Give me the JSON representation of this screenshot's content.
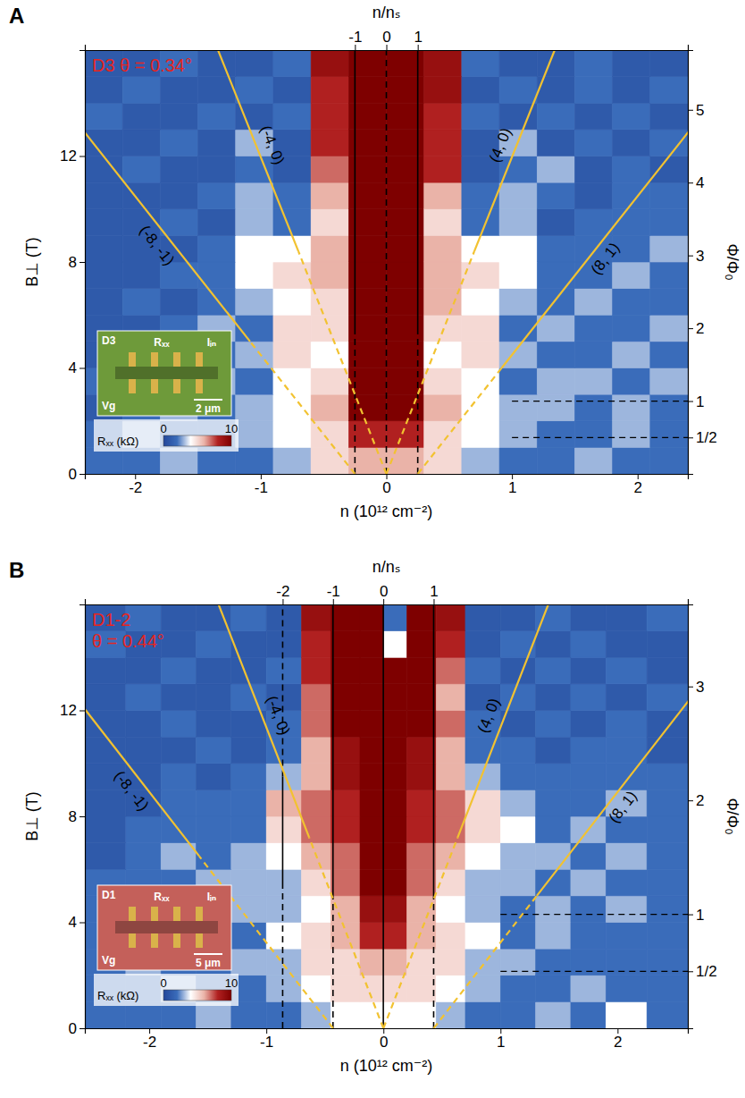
{
  "chart_data": [
    {
      "type": "heatmap",
      "panel": "A",
      "annotation": [
        "D3 θ = 0.34°"
      ],
      "x_label": "n (10¹² cm⁻²)",
      "y_label": "B⊥ (T)",
      "x2_label": "n/nₛ",
      "y2_label": "Φ/Φ₀",
      "xlim": [
        -2.4,
        2.4
      ],
      "xticks": [
        -2,
        -1,
        0,
        1,
        2
      ],
      "ylim": [
        0,
        16
      ],
      "yticks": [
        0,
        4,
        8,
        12
      ],
      "x2lim": [
        -9.6,
        9.6
      ],
      "x2ticks": [
        -1,
        0,
        1
      ],
      "y2lim": [
        0,
        5.82
      ],
      "y2ticks": [
        {
          "value": 0.5,
          "label": "1/2"
        },
        1,
        2,
        3,
        4,
        5
      ],
      "x_edges": [
        -2.4,
        -2.1,
        -1.8,
        -1.5,
        -1.2,
        -0.9,
        -0.6,
        -0.3,
        0,
        0.3,
        0.6,
        0.9,
        1.2,
        1.5,
        1.8,
        2.1,
        2.4
      ],
      "y_edges": [
        0,
        1,
        2,
        3,
        4,
        5,
        6,
        7,
        8,
        9,
        10,
        11,
        12,
        13,
        14,
        15,
        16
      ],
      "z": [
        [
          2,
          2,
          3,
          2,
          2,
          3,
          5,
          6,
          6,
          5,
          3,
          2,
          2,
          3,
          2,
          2
        ],
        [
          2,
          3,
          2,
          2,
          3,
          4,
          5,
          8,
          8,
          5,
          4,
          3,
          2,
          2,
          3,
          2
        ],
        [
          1,
          2,
          3,
          2,
          3,
          4,
          6,
          10,
          10,
          6,
          4,
          3,
          3,
          2,
          3,
          2
        ],
        [
          2,
          1,
          2,
          3,
          2,
          4,
          5,
          10,
          10,
          5,
          4,
          2,
          3,
          3,
          2,
          3
        ],
        [
          1,
          2,
          2,
          2,
          3,
          5,
          4,
          10,
          10,
          4,
          5,
          3,
          2,
          2,
          3,
          2
        ],
        [
          1,
          1,
          2,
          3,
          2,
          5,
          5,
          10,
          10,
          5,
          5,
          2,
          3,
          2,
          2,
          3
        ],
        [
          1,
          2,
          1,
          2,
          3,
          4,
          5,
          10,
          10,
          6,
          4,
          3,
          2,
          3,
          2,
          2
        ],
        [
          1,
          1,
          2,
          2,
          4,
          5,
          6,
          10,
          10,
          6,
          5,
          4,
          2,
          2,
          3,
          2
        ],
        [
          1,
          1,
          1,
          2,
          4,
          4,
          6,
          10,
          10,
          6,
          4,
          4,
          2,
          2,
          2,
          3
        ],
        [
          1,
          1,
          2,
          1,
          3,
          2,
          5,
          10,
          10,
          5,
          2,
          3,
          1,
          2,
          2,
          2
        ],
        [
          1,
          1,
          1,
          2,
          3,
          2,
          6,
          10,
          10,
          6,
          2,
          3,
          2,
          1,
          2,
          2
        ],
        [
          1,
          2,
          1,
          1,
          2,
          1,
          7,
          10,
          10,
          8,
          1,
          2,
          3,
          1,
          2,
          1
        ],
        [
          1,
          1,
          2,
          1,
          3,
          1,
          8,
          10,
          10,
          8,
          1,
          3,
          1,
          2,
          1,
          2
        ],
        [
          2,
          1,
          1,
          2,
          1,
          2,
          8,
          10,
          10,
          8,
          2,
          1,
          2,
          1,
          2,
          1
        ],
        [
          1,
          2,
          1,
          1,
          2,
          1,
          8,
          10,
          10,
          9,
          1,
          2,
          1,
          2,
          1,
          2
        ],
        [
          1,
          1,
          2,
          1,
          1,
          2,
          9,
          10,
          10,
          9,
          2,
          1,
          1,
          2,
          1,
          1
        ]
      ],
      "colorbar": {
        "label": "Rₓₓ (kΩ)",
        "range": [
          0,
          10
        ],
        "ticks": [
          0,
          10
        ],
        "colors": [
          "#24479a",
          "#3a6cba",
          "#ffffff",
          "#eab3a8",
          "#b02020",
          "#7e0000"
        ]
      },
      "vlines": [
        {
          "x2": -1,
          "color": "#000000",
          "segments": [
            {
              "y": [
                0,
                5.5
              ],
              "line_style": "dashed"
            },
            {
              "y": [
                5.5,
                16
              ],
              "line_style": "solid"
            }
          ]
        },
        {
          "x2": 0,
          "color": "#000000",
          "segments": [
            {
              "y": [
                0,
                16
              ],
              "line_style": "dashed"
            }
          ]
        },
        {
          "x2": 1,
          "color": "#000000",
          "segments": [
            {
              "y": [
                0,
                5.5
              ],
              "line_style": "dashed"
            },
            {
              "y": [
                5.5,
                16
              ],
              "line_style": "solid"
            }
          ]
        }
      ],
      "hlines": [
        {
          "y2": 1,
          "x_from": 1,
          "color": "#000000",
          "line_style": "dashed"
        },
        {
          "y2": 0.5,
          "x_from": 1,
          "color": "#000000",
          "line_style": "dashed"
        }
      ],
      "fan_lines": [
        {
          "label": "(-8, -1)",
          "color": "#f2c230",
          "segments": [
            {
              "x": [
                -0.25,
                -1.085
              ],
              "y": [
                0,
                5
              ],
              "line_style": "dashed"
            },
            {
              "x": [
                -1.085,
                -2.92
              ],
              "y": [
                5,
                16
              ],
              "line_style": "solid"
            }
          ]
        },
        {
          "label": "(-4, 0)",
          "color": "#f2c230",
          "segments": [
            {
              "x": [
                0,
                -0.7
              ],
              "y": [
                0,
                8.4
              ],
              "line_style": "dashed"
            },
            {
              "x": [
                -0.7,
                -1.34
              ],
              "y": [
                8.4,
                16
              ],
              "line_style": "solid"
            }
          ]
        },
        {
          "label": "(4, 0)",
          "color": "#f2c230",
          "segments": [
            {
              "x": [
                0,
                0.7
              ],
              "y": [
                0,
                8.4
              ],
              "line_style": "dashed"
            },
            {
              "x": [
                0.7,
                1.34
              ],
              "y": [
                8.4,
                16
              ],
              "line_style": "solid"
            }
          ]
        },
        {
          "label": "(8, 1)",
          "color": "#f2c230",
          "segments": [
            {
              "x": [
                0.25,
                0.918
              ],
              "y": [
                0,
                4
              ],
              "line_style": "dashed"
            },
            {
              "x": [
                0.918,
                2.92
              ],
              "y": [
                4,
                16
              ],
              "line_style": "solid"
            }
          ]
        }
      ],
      "inset": {
        "device": "D3",
        "voltage": "Rₓₓ",
        "current": "Iᵢₙ",
        "gate": "Vg",
        "scale_bar": "2 μm",
        "color": "#6e9a3a"
      }
    },
    {
      "type": "heatmap",
      "panel": "B",
      "annotation": [
        "D1-2",
        "θ = 0.44°"
      ],
      "x_label": "n (10¹² cm⁻²)",
      "y_label": "B⊥ (T)",
      "x2_label": "n/nₛ",
      "y2_label": "Φ/Φ₀",
      "xlim": [
        -2.55,
        2.6
      ],
      "xticks": [
        -2,
        -1,
        0,
        1,
        2
      ],
      "ylim": [
        0,
        16
      ],
      "yticks": [
        0,
        4,
        8,
        12
      ],
      "x2lim": [
        -5.93,
        6.05
      ],
      "x2ticks": [
        -2,
        -1,
        0,
        1
      ],
      "y2lim": [
        0,
        3.72
      ],
      "y2ticks": [
        {
          "value": 0.5,
          "label": "1/2"
        },
        1,
        2,
        3
      ],
      "x_edges": [
        -2.55,
        -2.2,
        -1.9,
        -1.6,
        -1.3,
        -1.0,
        -0.7,
        -0.45,
        -0.2,
        0,
        0.2,
        0.45,
        0.7,
        1.0,
        1.3,
        1.6,
        1.9,
        2.25,
        2.6
      ],
      "y_edges": [
        0,
        1,
        2,
        3,
        4,
        5,
        6,
        7,
        8,
        9,
        10,
        11,
        12,
        13,
        14,
        15,
        16
      ],
      "z": [
        [
          2,
          2,
          2,
          3,
          2,
          2,
          3,
          4,
          4,
          4,
          4,
          3,
          2,
          2,
          3,
          2,
          4,
          2
        ],
        [
          2,
          2,
          3,
          2,
          2,
          3,
          4,
          5,
          5,
          5,
          5,
          4,
          3,
          2,
          2,
          3,
          2,
          2
        ],
        [
          2,
          3,
          2,
          2,
          3,
          3,
          5,
          5,
          6,
          6,
          5,
          5,
          3,
          3,
          2,
          2,
          2,
          2
        ],
        [
          2,
          2,
          2,
          3,
          2,
          4,
          5,
          6,
          8,
          8,
          6,
          5,
          4,
          2,
          3,
          2,
          2,
          2
        ],
        [
          2,
          3,
          2,
          2,
          3,
          3,
          4,
          6,
          9,
          9,
          6,
          4,
          3,
          2,
          3,
          2,
          3,
          2
        ],
        [
          2,
          2,
          2,
          3,
          3,
          3,
          5,
          7,
          10,
          10,
          7,
          5,
          3,
          3,
          2,
          3,
          2,
          2
        ],
        [
          1,
          2,
          3,
          2,
          3,
          4,
          6,
          7,
          10,
          10,
          7,
          6,
          4,
          3,
          3,
          2,
          3,
          2
        ],
        [
          1,
          2,
          2,
          2,
          2,
          5,
          7,
          8,
          10,
          10,
          8,
          7,
          5,
          4,
          2,
          3,
          2,
          2
        ],
        [
          1,
          1,
          2,
          2,
          2,
          6,
          7,
          8,
          10,
          10,
          8,
          7,
          5,
          3,
          2,
          2,
          3,
          2
        ],
        [
          1,
          1,
          2,
          1,
          2,
          3,
          6,
          9,
          10,
          10,
          9,
          6,
          3,
          2,
          2,
          2,
          2,
          2
        ],
        [
          1,
          1,
          1,
          2,
          1,
          2,
          6,
          9,
          10,
          10,
          9,
          6,
          2,
          2,
          1,
          2,
          2,
          1
        ],
        [
          1,
          1,
          2,
          1,
          1,
          2,
          7,
          10,
          10,
          10,
          10,
          7,
          2,
          1,
          2,
          1,
          2,
          1
        ],
        [
          1,
          2,
          1,
          1,
          2,
          1,
          7,
          10,
          10,
          10,
          10,
          6,
          1,
          2,
          1,
          2,
          1,
          2
        ],
        [
          1,
          1,
          2,
          1,
          1,
          2,
          8,
          10,
          10,
          10,
          10,
          7,
          2,
          1,
          2,
          1,
          2,
          1
        ],
        [
          2,
          1,
          1,
          2,
          1,
          1,
          8,
          10,
          10,
          4,
          10,
          8,
          1,
          2,
          1,
          2,
          1,
          1
        ],
        [
          1,
          2,
          1,
          1,
          2,
          1,
          9,
          10,
          10,
          2,
          10,
          9,
          1,
          1,
          2,
          1,
          1,
          2
        ]
      ],
      "colorbar": {
        "label": "Rₓₓ (kΩ)",
        "range": [
          0,
          10
        ],
        "ticks": [
          0,
          10
        ],
        "colors": [
          "#24479a",
          "#3a6cba",
          "#ffffff",
          "#eab3a8",
          "#b02020",
          "#7e0000"
        ]
      },
      "vlines": [
        {
          "x2": -2,
          "color": "#000000",
          "segments": [
            {
              "y": [
                0,
                5.5
              ],
              "line_style": "dashed"
            },
            {
              "y": [
                5.5,
                9.5
              ],
              "line_style": "solid"
            },
            {
              "y": [
                9.5,
                16
              ],
              "line_style": "dashed"
            }
          ]
        },
        {
          "x2": -1,
          "color": "#000000",
          "segments": [
            {
              "y": [
                0,
                5
              ],
              "line_style": "dashed"
            },
            {
              "y": [
                5,
                16
              ],
              "line_style": "solid"
            }
          ]
        },
        {
          "x2": 0,
          "color": "#000000",
          "segments": [
            {
              "y": [
                0,
                16
              ],
              "line_style": "solid"
            }
          ]
        },
        {
          "x2": 1,
          "color": "#000000",
          "segments": [
            {
              "y": [
                0,
                5
              ],
              "line_style": "dashed"
            },
            {
              "y": [
                5,
                16
              ],
              "line_style": "solid"
            }
          ]
        }
      ],
      "hlines": [
        {
          "y2": 1,
          "x_from": 1,
          "color": "#000000",
          "line_style": "dashed"
        },
        {
          "y2": 0.5,
          "x_from": 1,
          "color": "#000000",
          "line_style": "dashed"
        }
      ],
      "fan_lines": [
        {
          "label": "(-8, -1)",
          "color": "#f2c230",
          "segments": [
            {
              "x": [
                -0.43,
                -1.574
              ],
              "y": [
                0,
                6.5
              ],
              "line_style": "dashed"
            },
            {
              "x": [
                -1.574,
                -3.246
              ],
              "y": [
                6.5,
                16
              ],
              "line_style": "solid"
            }
          ]
        },
        {
          "label": "(-4, 0)",
          "color": "#f2c230",
          "segments": [
            {
              "x": [
                0,
                -0.634
              ],
              "y": [
                0,
                7.2
              ],
              "line_style": "dashed"
            },
            {
              "x": [
                -0.634,
                -1.408
              ],
              "y": [
                7.2,
                16
              ],
              "line_style": "solid"
            }
          ]
        },
        {
          "label": "(4, 0)",
          "color": "#f2c230",
          "segments": [
            {
              "x": [
                0,
                0.634
              ],
              "y": [
                0,
                7.2
              ],
              "line_style": "dashed"
            },
            {
              "x": [
                0.634,
                1.408
              ],
              "y": [
                7.2,
                16
              ],
              "line_style": "solid"
            }
          ]
        },
        {
          "label": "(8, 1)",
          "color": "#f2c230",
          "segments": [
            {
              "x": [
                0.43,
                1.31
              ],
              "y": [
                0,
                5
              ],
              "line_style": "dashed"
            },
            {
              "x": [
                1.31,
                3.246
              ],
              "y": [
                5,
                16
              ],
              "line_style": "solid"
            }
          ]
        }
      ],
      "inset": {
        "device": "D1",
        "voltage": "Rₓₓ",
        "current": "Iᵢₙ",
        "gate": "Vg",
        "scale_bar": "5 μm",
        "color": "#c4605a"
      }
    }
  ]
}
